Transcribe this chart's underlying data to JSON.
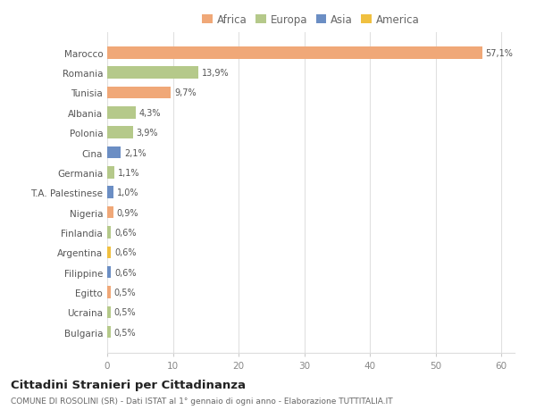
{
  "categories": [
    "Bulgaria",
    "Ucraina",
    "Egitto",
    "Filippine",
    "Argentina",
    "Finlandia",
    "Nigeria",
    "T.A. Palestinese",
    "Germania",
    "Cina",
    "Polonia",
    "Albania",
    "Tunisia",
    "Romania",
    "Marocco"
  ],
  "values": [
    0.5,
    0.5,
    0.5,
    0.6,
    0.6,
    0.6,
    0.9,
    1.0,
    1.1,
    2.1,
    3.9,
    4.3,
    9.7,
    13.9,
    57.1
  ],
  "labels": [
    "0,5%",
    "0,5%",
    "0,5%",
    "0,6%",
    "0,6%",
    "0,6%",
    "0,9%",
    "1,0%",
    "1,1%",
    "2,1%",
    "3,9%",
    "4,3%",
    "9,7%",
    "13,9%",
    "57,1%"
  ],
  "colors": [
    "#b5c98a",
    "#b5c98a",
    "#f0a878",
    "#6b8ec4",
    "#f0c040",
    "#b5c98a",
    "#f0a878",
    "#6b8ec4",
    "#b5c98a",
    "#6b8ec4",
    "#b5c98a",
    "#b5c98a",
    "#f0a878",
    "#b5c98a",
    "#f0a878"
  ],
  "legend_labels": [
    "Africa",
    "Europa",
    "Asia",
    "America"
  ],
  "legend_colors": [
    "#f0a878",
    "#b5c98a",
    "#6b8ec4",
    "#f0c040"
  ],
  "title": "Cittadini Stranieri per Cittadinanza",
  "subtitle": "COMUNE DI ROSOLINI (SR) - Dati ISTAT al 1° gennaio di ogni anno - Elaborazione TUTTITALIA.IT",
  "xlim": [
    0,
    62
  ],
  "background_color": "#ffffff",
  "bar_height": 0.6
}
